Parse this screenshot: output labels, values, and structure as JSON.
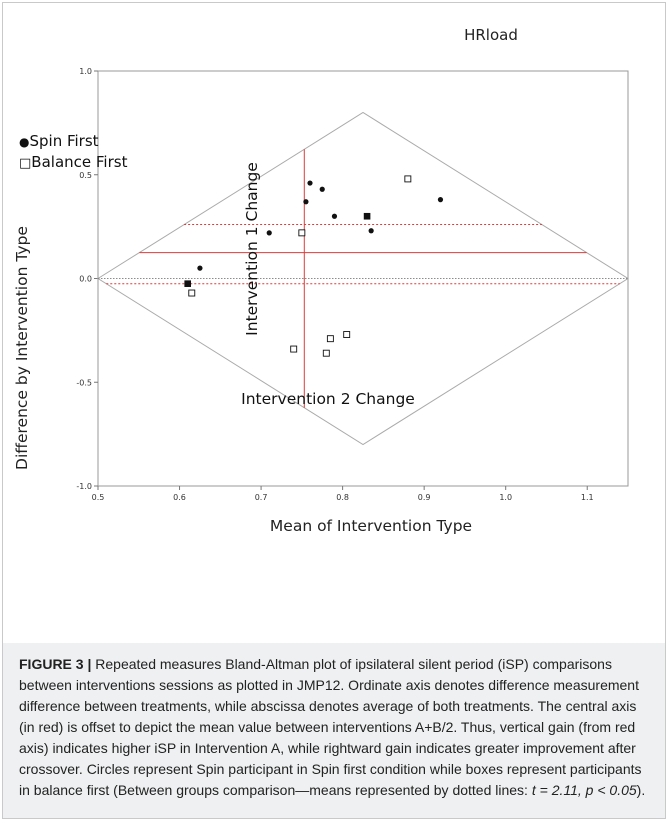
{
  "chart_data": {
    "type": "scatter",
    "title": "HRload",
    "xlabel": "Mean of Intervention Type",
    "ylabel": "Difference by Intervention Type",
    "xlim": [
      0.5,
      1.15
    ],
    "ylim": [
      -1.0,
      1.0
    ],
    "x_ticks": [
      0.5,
      0.6,
      0.7,
      0.8,
      0.9,
      1.0,
      1.1
    ],
    "x_tick_labels": [
      "0.5",
      "0.6",
      "0.7",
      "0.8",
      "0.9",
      "1.0",
      "1.1"
    ],
    "y_ticks": [
      -1.0,
      -0.5,
      0.0,
      0.5,
      1.0
    ],
    "y_tick_labels": [
      "-1.0",
      "-0.5",
      "0.0",
      "0.5",
      "1.0"
    ],
    "grid": false,
    "legend_position": "left",
    "legend": [
      {
        "label": "Spin First",
        "marker": "●"
      },
      {
        "label": "Balance First",
        "marker": "□"
      }
    ],
    "series": [
      {
        "name": "Spin First",
        "marker": "circle",
        "points": [
          [
            0.625,
            0.05
          ],
          [
            0.71,
            0.22
          ],
          [
            0.755,
            0.37
          ],
          [
            0.76,
            0.46
          ],
          [
            0.775,
            0.43
          ],
          [
            0.79,
            0.3
          ],
          [
            0.835,
            0.23
          ],
          [
            0.92,
            0.38
          ]
        ]
      },
      {
        "name": "Balance First",
        "marker": "open-square",
        "points": [
          [
            0.615,
            -0.07
          ],
          [
            0.74,
            -0.34
          ],
          [
            0.75,
            0.22
          ],
          [
            0.78,
            -0.36
          ],
          [
            0.785,
            -0.29
          ],
          [
            0.805,
            -0.27
          ],
          [
            0.88,
            0.48
          ]
        ]
      },
      {
        "name": "group-means",
        "marker": "filled-square",
        "points": [
          [
            0.61,
            -0.025
          ],
          [
            0.83,
            0.3
          ]
        ]
      }
    ],
    "reference_lines": {
      "zero_line_y": 0.0,
      "red_mean_y": 0.125,
      "red_mean_x": 0.753,
      "dotted_group_mean_y": [
        0.26,
        -0.025
      ],
      "diamond": {
        "left": [
          0.5,
          0.0
        ],
        "top": [
          0.825,
          0.8
        ],
        "right": [
          1.15,
          0.0
        ],
        "bottom": [
          0.825,
          -0.8
        ]
      }
    },
    "annotations": [
      {
        "text": "Intervention 1 Change",
        "orientation": "vertical"
      },
      {
        "text": "Intervention 2 Change",
        "orientation": "horizontal"
      }
    ],
    "colors": {
      "red_axis": "#e03a3a",
      "diamond": "#aaaaaa",
      "zero_line": "#8c8c8c",
      "points": "#111111"
    }
  },
  "caption": {
    "label": "FIGURE 3 |",
    "text_1": " Repeated measures Bland-Altman plot of ipsilateral silent period (iSP) comparisons between interventions sessions as plotted in JMP12. Ordinate axis denotes difference measurement difference between treatments, while abscissa denotes average of both treatments. The central axis (in red) is offset to depict the mean value between interventions A+B/2. Thus, vertical gain (from red axis) indicates higher iSP in Intervention A, while rightward gain indicates greater improvement after crossover. Circles represent Spin participant in Spin first condition while boxes represent participants in balance first (Between groups comparison—means represented by dotted lines: ",
    "stat": "t = 2.11, p < 0.05",
    "text_2": ")."
  }
}
